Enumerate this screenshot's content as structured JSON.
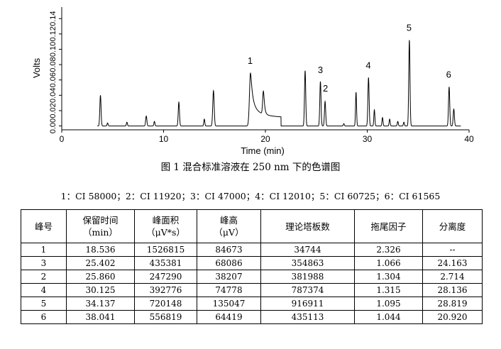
{
  "chart_data": {
    "type": "line",
    "xlabel": "Time (min)",
    "ylabel": "Volts",
    "xlim": [
      0,
      40
    ],
    "ylim": [
      -0.005,
      0.155
    ],
    "x_ticks": [
      "0",
      "10",
      "20",
      "30",
      "40"
    ],
    "y_ticks": [
      "0.00",
      "0.02",
      "0.04",
      "0.06",
      "0.08",
      "0.10",
      "0.12",
      "0.14"
    ],
    "grid": false,
    "baseline": 0.0,
    "peaks": [
      {
        "rt": 3.8,
        "height": 0.04,
        "width": 0.06,
        "tail": 0
      },
      {
        "rt": 4.5,
        "height": 0.004,
        "width": 0.05,
        "tail": 0
      },
      {
        "rt": 6.4,
        "height": 0.005,
        "width": 0.05,
        "tail": 0
      },
      {
        "rt": 8.3,
        "height": 0.013,
        "width": 0.06,
        "tail": 0
      },
      {
        "rt": 9.1,
        "height": 0.006,
        "width": 0.05,
        "tail": 0
      },
      {
        "rt": 11.5,
        "height": 0.031,
        "width": 0.06,
        "tail": 0
      },
      {
        "rt": 14.0,
        "height": 0.009,
        "width": 0.05,
        "tail": 0
      },
      {
        "rt": 14.9,
        "height": 0.046,
        "width": 0.07,
        "tail": 0
      },
      {
        "rt": 18.536,
        "height": 0.069,
        "width": 0.1,
        "tail": 0.5
      },
      {
        "rt": 19.8,
        "height": 0.03,
        "width": 0.07,
        "tail": 0.2
      },
      {
        "rt": 23.9,
        "height": 0.072,
        "width": 0.06,
        "tail": 0
      },
      {
        "rt": 25.402,
        "height": 0.058,
        "width": 0.06,
        "tail": 0
      },
      {
        "rt": 25.86,
        "height": 0.032,
        "width": 0.06,
        "tail": 0
      },
      {
        "rt": 27.7,
        "height": 0.003,
        "width": 0.05,
        "tail": 0
      },
      {
        "rt": 28.9,
        "height": 0.044,
        "width": 0.05,
        "tail": 0
      },
      {
        "rt": 30.125,
        "height": 0.063,
        "width": 0.06,
        "tail": 0
      },
      {
        "rt": 30.7,
        "height": 0.021,
        "width": 0.05,
        "tail": 0
      },
      {
        "rt": 31.5,
        "height": 0.011,
        "width": 0.05,
        "tail": 0
      },
      {
        "rt": 32.2,
        "height": 0.009,
        "width": 0.05,
        "tail": 0
      },
      {
        "rt": 33.0,
        "height": 0.006,
        "width": 0.05,
        "tail": 0
      },
      {
        "rt": 33.6,
        "height": 0.005,
        "width": 0.05,
        "tail": 0
      },
      {
        "rt": 34.137,
        "height": 0.112,
        "width": 0.06,
        "tail": 0
      },
      {
        "rt": 38.041,
        "height": 0.051,
        "width": 0.06,
        "tail": 0
      },
      {
        "rt": 38.5,
        "height": 0.022,
        "width": 0.06,
        "tail": 0
      }
    ],
    "peak_labels": [
      {
        "text": "1",
        "x": 18.5,
        "y": 0.081
      },
      {
        "text": "3",
        "x": 25.4,
        "y": 0.069
      },
      {
        "text": "2",
        "x": 25.9,
        "y": 0.045
      },
      {
        "text": "4",
        "x": 30.1,
        "y": 0.075
      },
      {
        "text": "5",
        "x": 34.1,
        "y": 0.124
      },
      {
        "text": "6",
        "x": 38.0,
        "y": 0.063
      }
    ]
  },
  "caption": "图 1  混合标准溶液在 250 nm 下的色谱图",
  "compound_legend": "1：CI 58000；2：CI 11920；3：CI 47000；4：CI 12010；5：CI 60725；6：CI 61565",
  "table": {
    "headers": [
      [
        "峰号"
      ],
      [
        "保留时间",
        "（min）"
      ],
      [
        "峰面积",
        "（μV*s）"
      ],
      [
        "峰高",
        "（μV）"
      ],
      [
        "理论塔板数"
      ],
      [
        "拖尾因子"
      ],
      [
        "分离度"
      ]
    ],
    "rows": [
      [
        "1",
        "18.536",
        "1526815",
        "84673",
        "34744",
        "2.326",
        "--"
      ],
      [
        "3",
        "25.402",
        "435381",
        "68086",
        "354863",
        "1.066",
        "24.163"
      ],
      [
        "2",
        "25.860",
        "247290",
        "38207",
        "381988",
        "1.304",
        "2.714"
      ],
      [
        "4",
        "30.125",
        "392776",
        "74778",
        "787374",
        "1.315",
        "28.136"
      ],
      [
        "5",
        "34.137",
        "720148",
        "135047",
        "916911",
        "1.095",
        "28.819"
      ],
      [
        "6",
        "38.041",
        "556819",
        "64419",
        "435113",
        "1.044",
        "20.920"
      ]
    ]
  }
}
